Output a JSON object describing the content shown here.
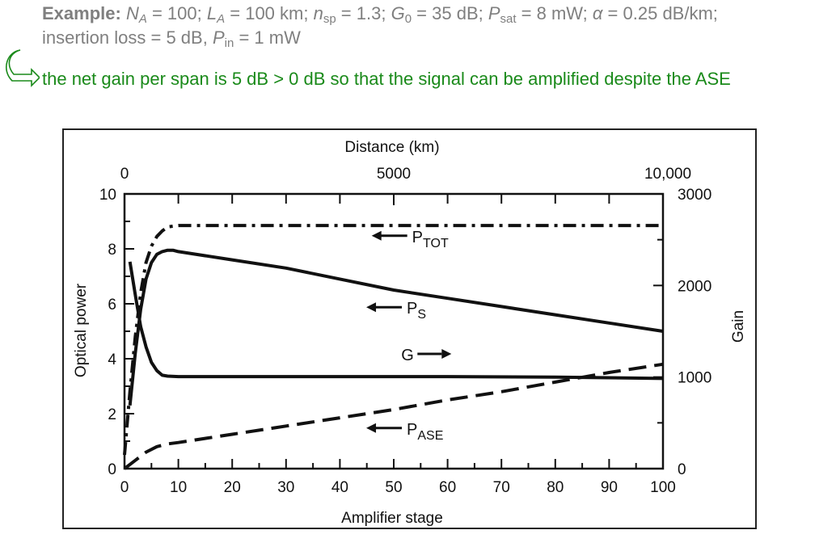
{
  "header": {
    "example_label": "Example:",
    "params": {
      "NA_sym": "N",
      "NA_sub": "A",
      "NA_val": " = 100; ",
      "LA_sym": "L",
      "LA_sub": "A",
      "LA_val": " = 100 km; ",
      "nsp_sym": "n",
      "nsp_sub": "sp",
      "nsp_val": " = 1.3; ",
      "G0_sym": "G",
      "G0_sub": "0",
      "G0_val": " = 35 dB; ",
      "Psat_sym": "P",
      "Psat_sub": "sat",
      "Psat_val": " = 8 mW; ",
      "alpha_sym": "α",
      "alpha_val": " = 0.25 dB/km;",
      "loss_text": "insertion loss = 5 dB, ",
      "Pin_sym": "P",
      "Pin_sub": "in",
      "Pin_val": " = 1 mW"
    },
    "conclusion": "the net gain per span is 5 dB > 0 dB so that the signal can be amplified despite the ASE",
    "arrow_icon_color": "#1a8a1a"
  },
  "chart_data": {
    "type": "line",
    "xlabel": "Amplifier stage",
    "x2label": "Distance (km)",
    "ylabel": "Optical power",
    "y2label": "Gain",
    "xlim": [
      0,
      100
    ],
    "ylim": [
      0,
      10
    ],
    "x2lim": [
      0,
      10000
    ],
    "y2lim": [
      0,
      3000
    ],
    "x_ticks": [
      "0",
      "10",
      "20",
      "30",
      "40",
      "50",
      "60",
      "70",
      "80",
      "90",
      "100"
    ],
    "y_ticks": [
      "0",
      "2",
      "4",
      "6",
      "8",
      "10"
    ],
    "x2_ticks": [
      "0",
      "5000",
      "10,000"
    ],
    "y2_ticks": [
      "0",
      "1000",
      "2000",
      "3000"
    ],
    "series": [
      {
        "name": "P",
        "sub": "TOT",
        "style": "dashdot",
        "axis": "left",
        "x": [
          0,
          1,
          2,
          3,
          4,
          5,
          6,
          7,
          8,
          10,
          20,
          40,
          60,
          80,
          100
        ],
        "y": [
          0.5,
          2.8,
          4.8,
          6.4,
          7.5,
          8.1,
          8.45,
          8.65,
          8.8,
          8.85,
          8.85,
          8.85,
          8.85,
          8.85,
          8.85
        ]
      },
      {
        "name": "P",
        "sub": "S",
        "style": "solid",
        "axis": "left",
        "x": [
          1,
          2,
          3,
          4,
          5,
          6,
          7,
          8,
          9,
          10,
          20,
          30,
          40,
          50,
          60,
          70,
          80,
          90,
          100
        ],
        "y": [
          2.3,
          4.2,
          5.8,
          6.9,
          7.5,
          7.8,
          7.9,
          7.95,
          7.95,
          7.9,
          7.6,
          7.3,
          6.9,
          6.5,
          6.2,
          5.9,
          5.6,
          5.3,
          5.0
        ]
      },
      {
        "name": "G",
        "style": "solid",
        "axis": "right",
        "x": [
          1,
          2,
          3,
          4,
          5,
          6,
          7,
          8,
          10,
          20,
          40,
          60,
          80,
          100
        ],
        "y": [
          2260,
          1900,
          1550,
          1330,
          1160,
          1070,
          1020,
          1010,
          1005,
          1005,
          1005,
          1005,
          1000,
          985
        ]
      },
      {
        "name": "P",
        "sub": "ASE",
        "style": "dashed",
        "axis": "left",
        "x": [
          0,
          2,
          4,
          6,
          8,
          10,
          20,
          30,
          40,
          50,
          60,
          70,
          80,
          90,
          100
        ],
        "y": [
          0,
          0.3,
          0.6,
          0.8,
          0.9,
          0.95,
          1.25,
          1.55,
          1.85,
          2.15,
          2.5,
          2.8,
          3.15,
          3.5,
          3.8
        ]
      }
    ],
    "annotations": [
      {
        "series": "P_TOT",
        "text": "P",
        "sub": "TOT",
        "arrow": "left"
      },
      {
        "series": "P_S",
        "text": "P",
        "sub": "S",
        "arrow": "left"
      },
      {
        "series": "G",
        "text": "G",
        "sub": "",
        "arrow": "right"
      },
      {
        "series": "P_ASE",
        "text": "P",
        "sub": "ASE",
        "arrow": "left"
      }
    ]
  }
}
